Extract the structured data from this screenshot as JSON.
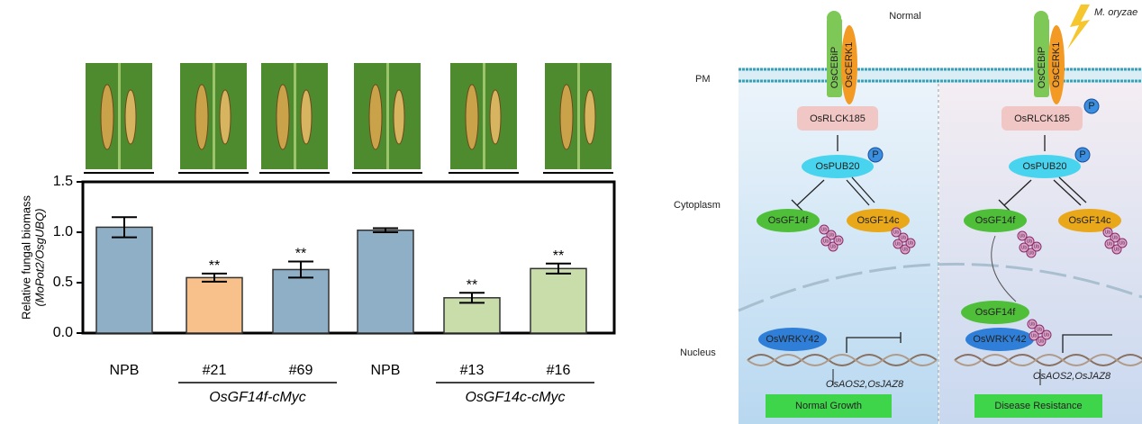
{
  "chart_data": {
    "type": "bar",
    "y_label": [
      "Relative fungal biomass",
      "(MoPot2/OsgUBQ)"
    ],
    "categories": [
      "NPB",
      "#21",
      "#69",
      "NPB",
      "#13",
      "#16"
    ],
    "values": [
      1.05,
      0.55,
      0.63,
      1.02,
      0.35,
      0.64
    ],
    "errors": [
      0.1,
      0.04,
      0.08,
      0.02,
      0.05,
      0.05
    ],
    "colors": [
      "#8fafc6",
      "#f8c08a",
      "#8fafc6",
      "#8fafc6",
      "#c9ddab",
      "#c9ddab"
    ],
    "significance": [
      null,
      "**",
      "**",
      null,
      "**",
      "**"
    ],
    "groups": [
      {
        "label": "OsGF14f-cMyc",
        "members": [
          1,
          2
        ]
      },
      {
        "label": "OsGF14c-cMyc",
        "members": [
          4,
          5
        ]
      }
    ],
    "ylim": [
      0,
      1.5
    ],
    "yticks": [
      {
        "value": 0,
        "label": "0.0"
      },
      {
        "value": 0.5,
        "label": "0.5"
      },
      {
        "value": 1,
        "label": "1.0"
      },
      {
        "value": 1.5,
        "label": "1.5"
      }
    ]
  },
  "diagram": {
    "conditions": [
      "Normal",
      "M. oryzae"
    ],
    "compartments": [
      "PM",
      "Cytoplasm",
      "Nucleus"
    ],
    "receptor": [
      "OsCEBiP",
      "OsCERK1"
    ],
    "kinase": "OsRLCK185",
    "e3": "OsPUB20",
    "phospho": "P",
    "ub": "Ub",
    "targets": [
      "OsGF14f",
      "OsGF14c"
    ],
    "tf": "OsWRKY42",
    "genes": "OsAOS2,OsJAZ8",
    "outcomes": [
      "Normal   Growth",
      "Disease  Resistance"
    ]
  }
}
